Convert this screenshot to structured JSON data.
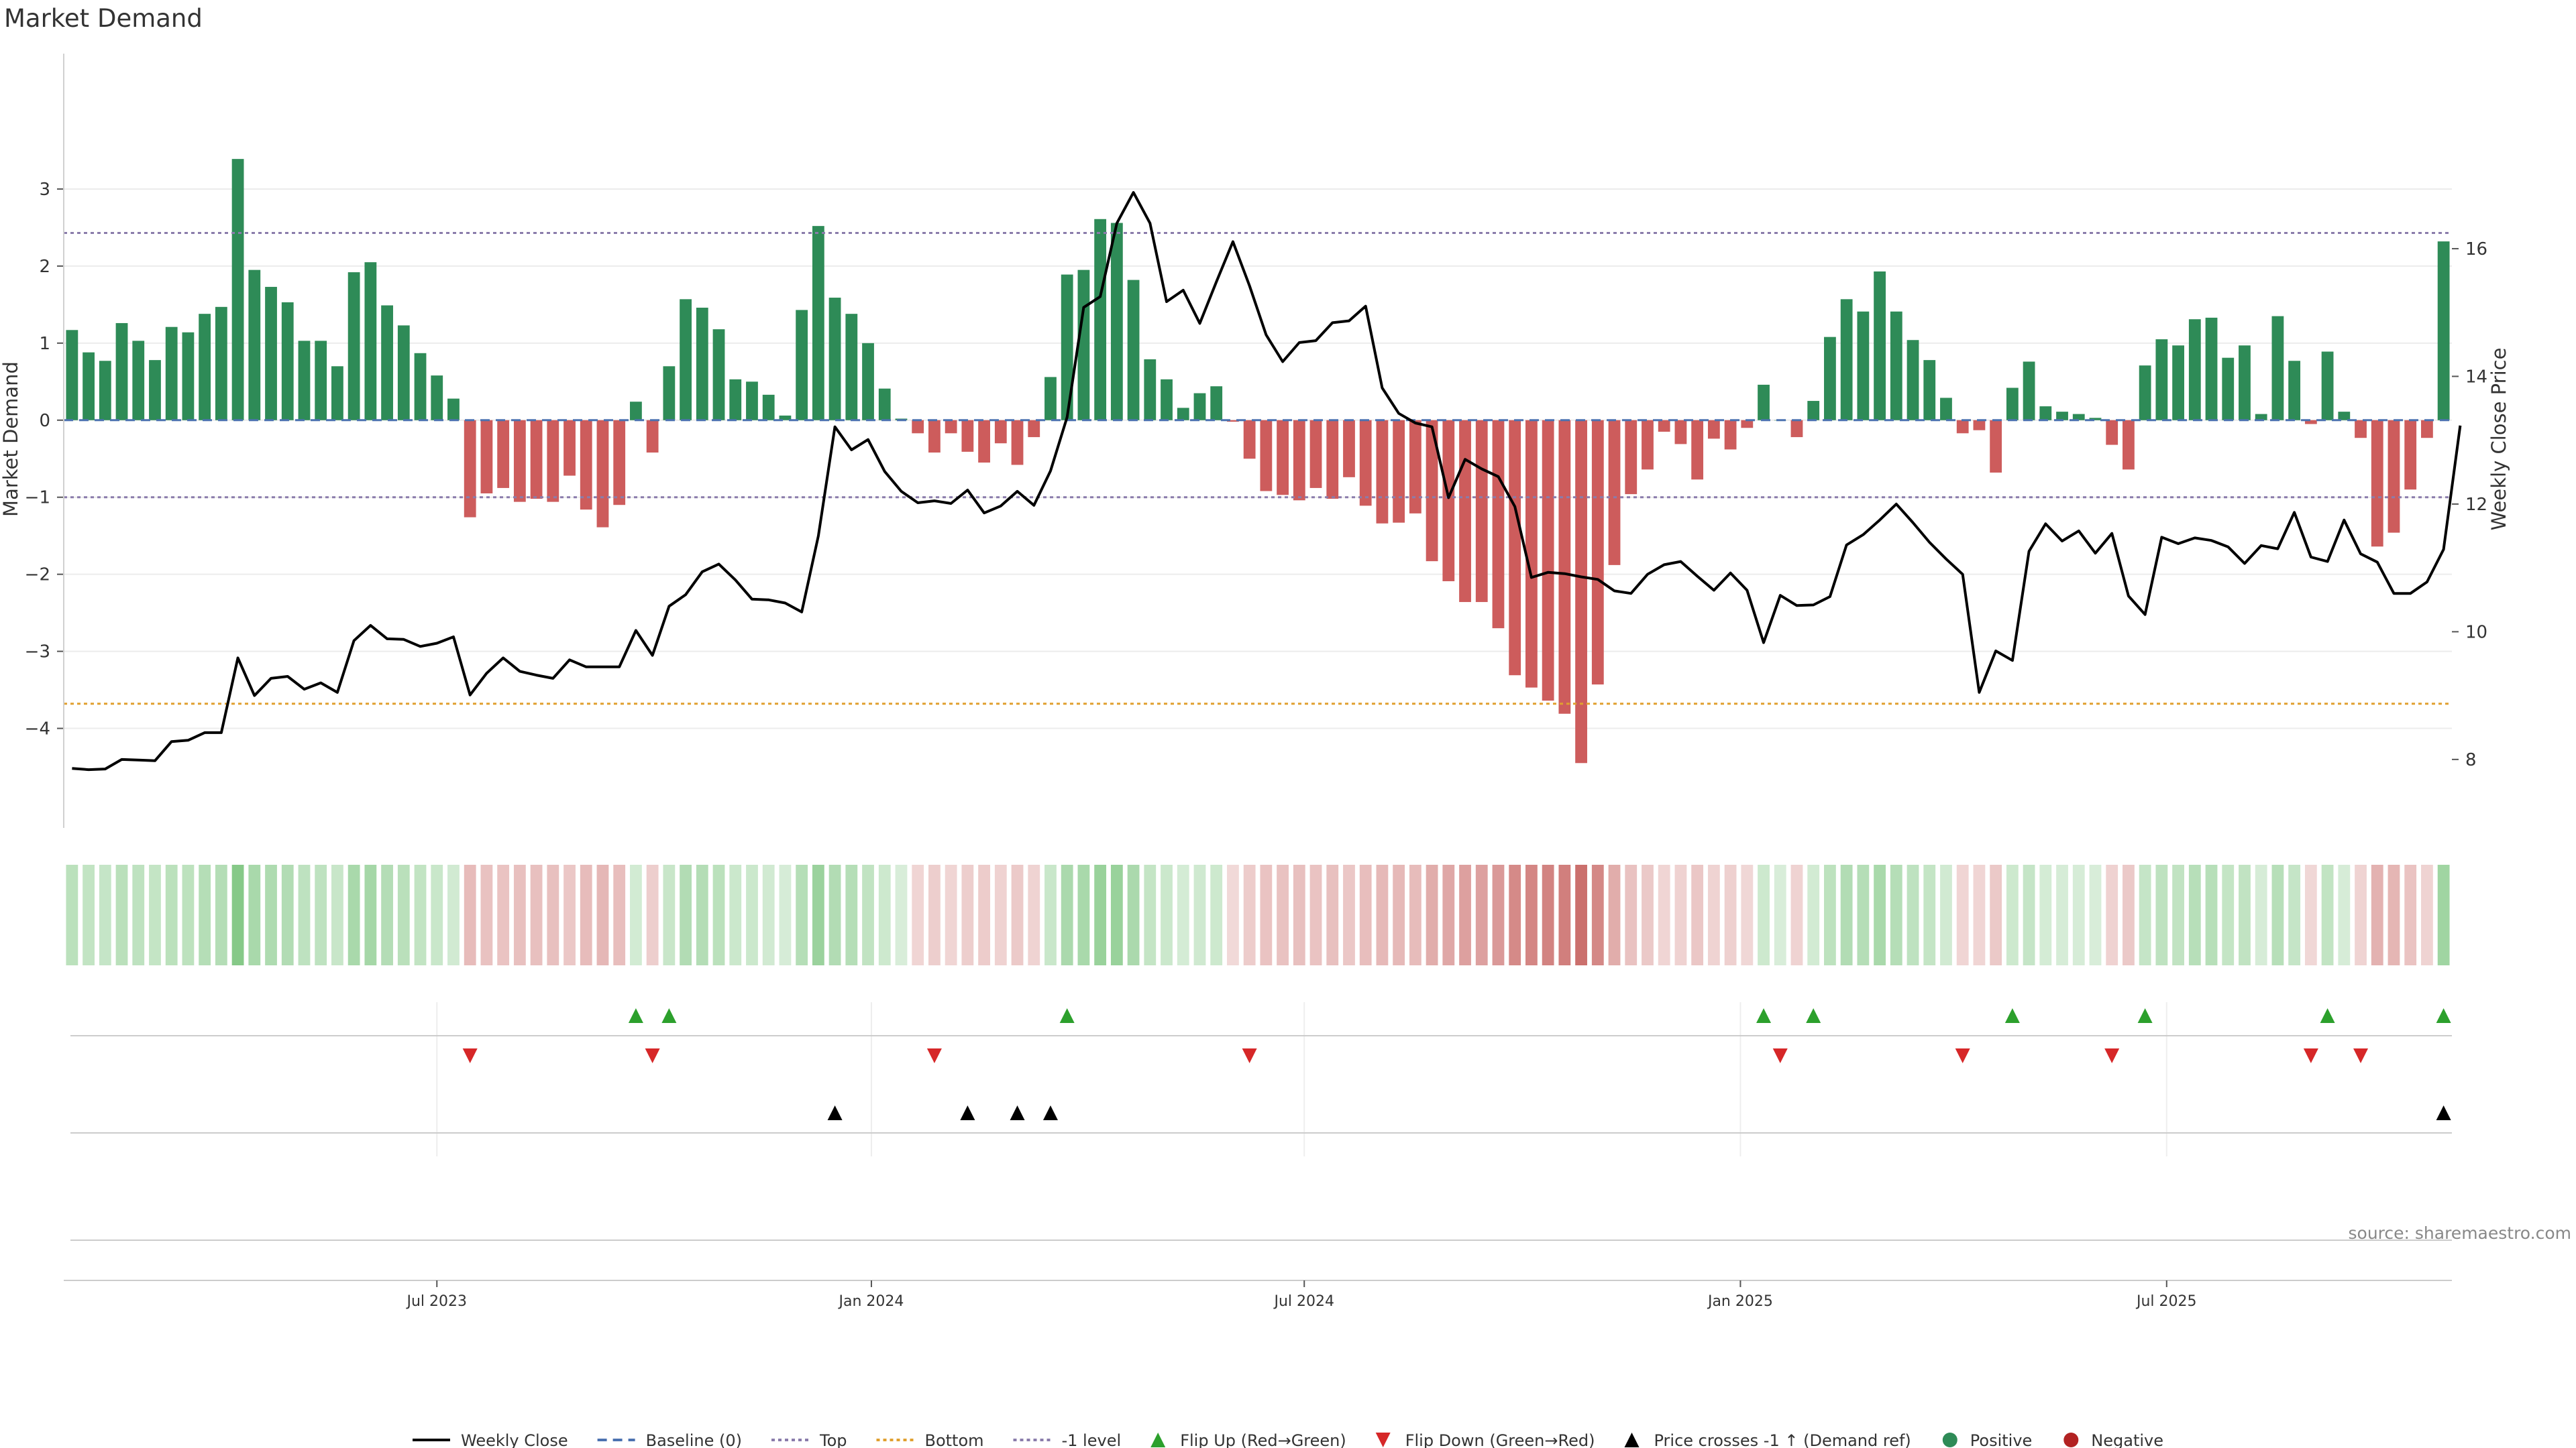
{
  "chart_data": {
    "type": "bar",
    "title": "Market Demand",
    "ylabel": "Market Demand",
    "y2label": "Weekly Close Price",
    "source": "source: sharemaestro.com",
    "ylim": [
      -4.9,
      3.8
    ],
    "y_ticks": [
      3,
      2,
      1,
      0,
      -1,
      -2,
      -3,
      -4
    ],
    "y_tick_labels": [
      "3",
      "2",
      "1",
      "0",
      "−1",
      "−2",
      "−3",
      "−4"
    ],
    "y2lim": [
      7.4,
      17.9
    ],
    "y2_ticks": [
      16,
      14,
      12,
      10,
      8
    ],
    "x_ticks": [
      {
        "label": "Jul 2023",
        "index": 22
      },
      {
        "label": "Jan 2024",
        "index": 48.2
      },
      {
        "label": "Jul 2024",
        "index": 74.3
      },
      {
        "label": "Jan 2025",
        "index": 100.6
      },
      {
        "label": "Jul 2025",
        "index": 126.3
      }
    ],
    "reference_lines": [
      {
        "name": "Top",
        "value": 2.43,
        "color": "#8a7cab",
        "dash": "dotted"
      },
      {
        "name": "-1 level",
        "value": -1.0,
        "color": "#8a7cab",
        "dash": "dotted"
      },
      {
        "name": "Bottom",
        "value": -3.68,
        "color": "#e0a030",
        "dash": "dotted"
      },
      {
        "name": "Baseline (0)",
        "value": 0,
        "color": "#4c72b0",
        "dash": "dashed"
      }
    ],
    "demand": [
      1.17,
      0.88,
      0.77,
      1.26,
      1.03,
      0.78,
      1.21,
      1.14,
      1.38,
      1.47,
      3.39,
      1.95,
      1.73,
      1.53,
      1.03,
      1.03,
      0.7,
      1.92,
      2.05,
      1.49,
      1.23,
      0.87,
      0.58,
      0.28,
      -1.26,
      -0.95,
      -0.88,
      -1.06,
      -1.02,
      -1.06,
      -0.72,
      -1.16,
      -1.39,
      -1.1,
      0.24,
      -0.42,
      0.7,
      1.57,
      1.46,
      1.18,
      0.53,
      0.5,
      0.33,
      0.06,
      1.43,
      2.52,
      1.59,
      1.38,
      1.0,
      0.41,
      0.02,
      -0.17,
      -0.42,
      -0.17,
      -0.41,
      -0.55,
      -0.3,
      -0.58,
      -0.22,
      0.56,
      1.89,
      1.95,
      2.61,
      2.56,
      1.82,
      0.79,
      0.53,
      0.16,
      0.35,
      0.44,
      -0.02,
      -0.5,
      -0.92,
      -0.97,
      -1.04,
      -0.88,
      -1.02,
      -0.74,
      -1.11,
      -1.34,
      -1.33,
      -1.21,
      -1.83,
      -2.09,
      -2.36,
      -2.36,
      -2.7,
      -3.31,
      -3.47,
      -3.64,
      -3.81,
      -4.45,
      -3.43,
      -1.88,
      -0.96,
      -0.64,
      -0.15,
      -0.31,
      -0.77,
      -0.24,
      -0.38,
      -0.1,
      0.46,
      0.0,
      -0.22,
      0.25,
      1.08,
      1.57,
      1.41,
      1.93,
      1.41,
      1.04,
      0.78,
      0.29,
      -0.17,
      -0.13,
      -0.68,
      0.42,
      0.76,
      0.18,
      0.11,
      0.08,
      0.03,
      -0.32,
      -0.64,
      0.71,
      1.05,
      0.97,
      1.31,
      1.33,
      0.81,
      0.97,
      0.08,
      1.35,
      0.77,
      -0.05,
      0.89,
      0.11,
      -0.23,
      -1.64,
      -1.46,
      -0.9,
      -0.23,
      2.32
    ],
    "weekly_close": [
      7.86,
      7.84,
      7.85,
      8.0,
      7.99,
      7.98,
      8.28,
      8.3,
      8.42,
      8.42,
      9.59,
      9.0,
      9.27,
      9.3,
      9.1,
      9.2,
      9.05,
      9.86,
      10.1,
      9.89,
      9.88,
      9.77,
      9.82,
      9.92,
      9.01,
      9.35,
      9.59,
      9.38,
      9.32,
      9.27,
      9.56,
      9.45,
      9.45,
      9.45,
      10.02,
      9.63,
      10.4,
      10.58,
      10.94,
      11.06,
      10.81,
      10.51,
      10.5,
      10.45,
      10.31,
      11.5,
      13.21,
      12.85,
      13.01,
      12.51,
      12.2,
      12.02,
      12.05,
      12.01,
      12.22,
      11.86,
      11.97,
      12.2,
      11.98,
      12.52,
      13.36,
      15.08,
      15.25,
      16.4,
      16.88,
      16.4,
      15.17,
      15.35,
      14.83,
      15.48,
      16.11,
      15.42,
      14.65,
      14.23,
      14.53,
      14.56,
      14.84,
      14.87,
      15.1,
      13.82,
      13.42,
      13.27,
      13.21,
      12.1,
      12.7,
      12.55,
      12.43,
      11.96,
      10.85,
      10.93,
      10.91,
      10.86,
      10.82,
      10.64,
      10.6,
      10.9,
      11.05,
      11.1,
      10.87,
      10.65,
      10.92,
      10.65,
      9.83,
      10.57,
      10.41,
      10.42,
      10.55,
      11.36,
      11.52,
      11.75,
      12.0,
      11.71,
      11.4,
      11.14,
      10.9,
      9.05,
      9.7,
      9.55,
      11.26,
      11.69,
      11.42,
      11.58,
      11.23,
      11.54,
      10.56,
      10.27,
      11.48,
      11.38,
      11.47,
      11.43,
      11.33,
      11.07,
      11.35,
      11.3,
      11.87,
      11.17,
      11.1,
      11.75,
      11.22,
      11.09,
      10.6,
      10.6,
      10.78,
      11.29,
      13.23
    ],
    "flip_up_indices": [
      34,
      36,
      60,
      102,
      105,
      117,
      125,
      136,
      143
    ],
    "flip_down_indices": [
      24,
      35,
      52,
      71,
      103,
      114,
      123,
      135,
      138
    ],
    "price_cross_indices": [
      46,
      54,
      57,
      59,
      143
    ],
    "colors": {
      "positive": "#2e8b57",
      "negative": "#cd5c5c",
      "price_line": "#000000",
      "flip_up": "#2ca02c",
      "flip_down": "#d62728",
      "cross": "#000000",
      "source": "#888888"
    },
    "legend": [
      {
        "label": "Weekly Close",
        "symbol": "line-solid",
        "color": "#000000"
      },
      {
        "label": "Baseline (0)",
        "symbol": "line-dashed",
        "color": "#4c72b0"
      },
      {
        "label": "Top",
        "symbol": "line-dotted",
        "color": "#8a7cab"
      },
      {
        "label": "Bottom",
        "symbol": "line-dotted",
        "color": "#e0a030"
      },
      {
        "label": "-1 level",
        "symbol": "line-dotted",
        "color": "#8a7cab"
      },
      {
        "label": "Flip Up (Red→Green)",
        "symbol": "triangle-up",
        "color": "#2ca02c"
      },
      {
        "label": "Flip Down (Green→Red)",
        "symbol": "triangle-down",
        "color": "#d62728"
      },
      {
        "label": "Price crosses -1 ↑ (Demand ref)",
        "symbol": "triangle-up",
        "color": "#000000"
      },
      {
        "label": "Positive",
        "symbol": "circle",
        "color": "#2e8b57"
      },
      {
        "label": "Negative",
        "symbol": "circle",
        "color": "#b22222"
      }
    ],
    "legend_placement": "bottom"
  }
}
